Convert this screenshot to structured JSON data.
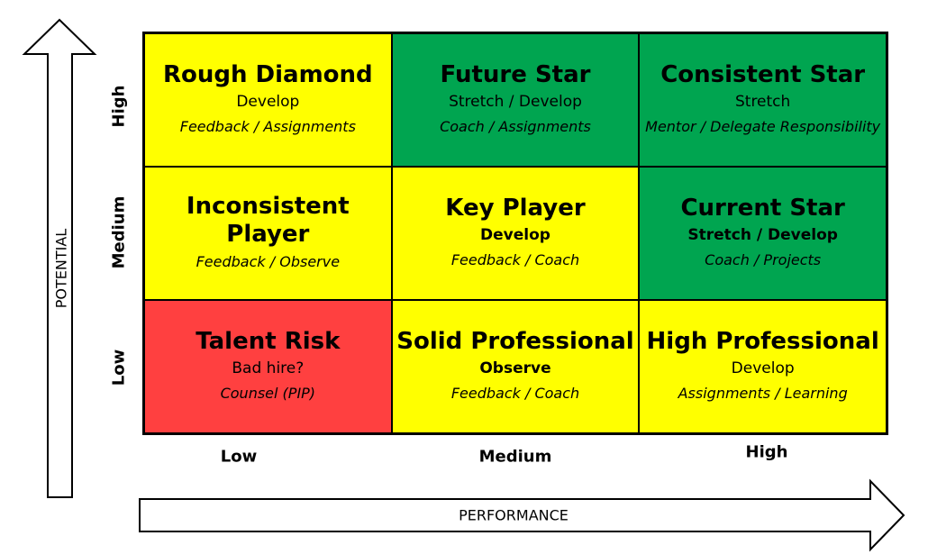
{
  "axes": {
    "vertical_title": "POTENTIAL",
    "horizontal_title": "PERFORMANCE",
    "rows": [
      "High",
      "Medium",
      "Low"
    ],
    "cols": [
      "Low",
      "Medium",
      "High"
    ]
  },
  "colors": {
    "yellow": "#FFFF00",
    "green": "#00A550",
    "red": "#FF4040"
  },
  "cells": [
    {
      "title": "Rough Diamond",
      "subtitle": "Develop",
      "action": "Feedback / Assignments",
      "color": "yellow",
      "subtitle_bold": false
    },
    {
      "title": "Future Star",
      "subtitle": "Stretch / Develop",
      "action": "Coach / Assignments",
      "color": "green",
      "subtitle_bold": false
    },
    {
      "title": "Consistent Star",
      "subtitle": "Stretch",
      "action": "Mentor / Delegate Responsibility",
      "color": "green",
      "subtitle_bold": false
    },
    {
      "title": "Inconsistent Player",
      "subtitle": "",
      "action": "Feedback / Observe",
      "color": "yellow",
      "subtitle_bold": false
    },
    {
      "title": "Key Player",
      "subtitle": "Develop",
      "action": "Feedback / Coach",
      "color": "yellow",
      "subtitle_bold": true
    },
    {
      "title": "Current Star",
      "subtitle": "Stretch / Develop",
      "action": "Coach / Projects",
      "color": "green",
      "subtitle_bold": true
    },
    {
      "title": "Talent Risk",
      "subtitle": "Bad hire?",
      "action": "Counsel (PIP)",
      "color": "red",
      "subtitle_bold": false
    },
    {
      "title": "Solid Professional",
      "subtitle": "Observe",
      "action": "Feedback / Coach",
      "color": "yellow",
      "subtitle_bold": true
    },
    {
      "title": "High Professional",
      "subtitle": "Develop",
      "action": "Assignments / Learning",
      "color": "yellow",
      "subtitle_bold": false
    }
  ]
}
